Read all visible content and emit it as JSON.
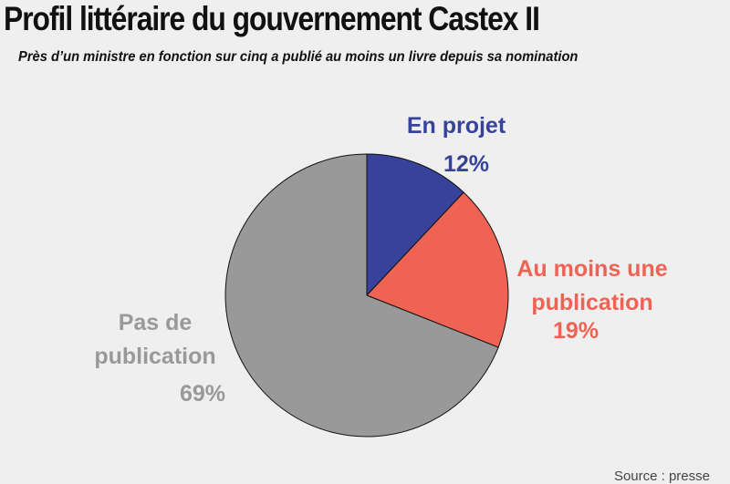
{
  "header": {
    "title": "Profil littéraire du gouvernement Castex II",
    "subtitle": "Près d’un ministre en fonction sur cinq a publié au moins un livre depuis sa nomination"
  },
  "footer": {
    "source": "Source : presse"
  },
  "chart_data": {
    "type": "pie",
    "title": "Profil littéraire du gouvernement Castex II",
    "subtitle": "Près d’un ministre en fonction sur cinq a publié au moins un livre depuis sa nomination",
    "slices": [
      {
        "label_lines": [
          "En projet"
        ],
        "value": 12,
        "value_label": "12%",
        "color": "#37439a"
      },
      {
        "label_lines": [
          "Au moins une",
          "publication"
        ],
        "value": 19,
        "value_label": "19%",
        "color": "#ee6353"
      },
      {
        "label_lines": [
          "Pas de",
          "publication"
        ],
        "value": 69,
        "value_label": "69%",
        "color": "#999999"
      }
    ],
    "start_angle_deg": 0,
    "direction": "clockwise",
    "legend": "none",
    "colors": {
      "background": "#efefef",
      "slice_stroke": "#111111"
    }
  }
}
